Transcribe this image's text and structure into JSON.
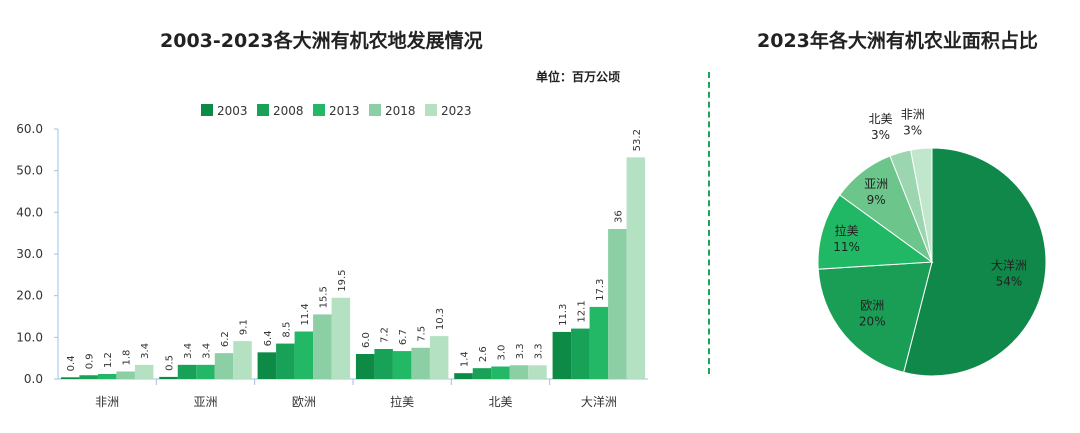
{
  "chart_data": [
    {
      "type": "bar",
      "title": "2003-2023各大洲有机农地发展情况",
      "unit": "单位：百万公顷",
      "categories": [
        "非洲",
        "亚洲",
        "欧洲",
        "拉美",
        "北美",
        "大洋洲"
      ],
      "series": [
        {
          "name": "2003",
          "values": [
            0.4,
            0.5,
            6.4,
            6.0,
            1.4,
            11.3
          ],
          "labels": [
            "0.4",
            "0.5",
            "6.4",
            "6.0",
            "1.4",
            "11.3"
          ],
          "color": "#0e8a47"
        },
        {
          "name": "2008",
          "values": [
            0.9,
            3.4,
            8.5,
            7.2,
            2.6,
            12.1
          ],
          "labels": [
            "0.9",
            "3.4",
            "8.5",
            "7.2",
            "2.6",
            "12.1"
          ],
          "color": "#17a257"
        },
        {
          "name": "2013",
          "values": [
            1.2,
            3.4,
            11.4,
            6.7,
            3.0,
            17.3
          ],
          "labels": [
            "1.2",
            "3.4",
            "11.4",
            "6.7",
            "3.0",
            "17.3"
          ],
          "color": "#22b866"
        },
        {
          "name": "2018",
          "values": [
            1.8,
            6.2,
            15.5,
            7.5,
            3.3,
            36
          ],
          "labels": [
            "1.8",
            "6.2",
            "15.5",
            "7.5",
            "3.3",
            "36"
          ],
          "color": "#8ccfa5"
        },
        {
          "name": "2023",
          "values": [
            3.4,
            9.1,
            19.5,
            10.3,
            3.3,
            53.2
          ],
          "labels": [
            "3.4",
            "9.1",
            "19.5",
            "10.3",
            "3.3",
            "53.2"
          ],
          "color": "#b5e1c3"
        }
      ],
      "ylim": [
        0,
        60
      ],
      "yticks": [
        "0.0",
        "10.0",
        "20.0",
        "30.0",
        "40.0",
        "50.0",
        "60.0"
      ],
      "legend_position": "top"
    },
    {
      "type": "pie",
      "title": "2023年各大洲有机农业面积占比",
      "slices": [
        {
          "name": "大洋洲",
          "percent": "54%",
          "value": 54,
          "color": "#10884a"
        },
        {
          "name": "欧洲",
          "percent": "20%",
          "value": 20,
          "color": "#1a9e55"
        },
        {
          "name": "拉美",
          "percent": "11%",
          "value": 11,
          "color": "#20b765"
        },
        {
          "name": "亚洲",
          "percent": "9%",
          "value": 9,
          "color": "#6cc68c"
        },
        {
          "name": "北美",
          "percent": "3%",
          "value": 3,
          "color": "#9bd6b0"
        },
        {
          "name": "非洲",
          "percent": "3%",
          "value": 3,
          "color": "#c0e6cc"
        }
      ]
    }
  ]
}
